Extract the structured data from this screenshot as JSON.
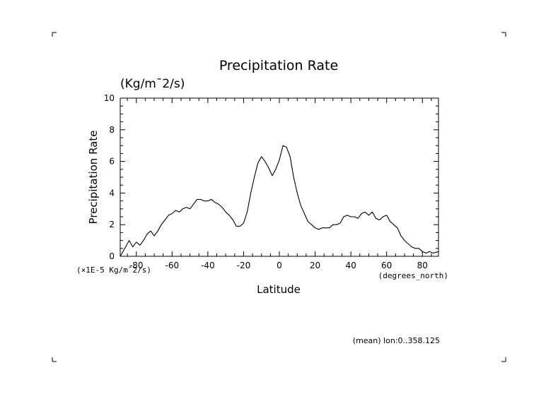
{
  "chart_data": {
    "type": "line",
    "title": "Precipitation Rate",
    "units": "(Kg/m¯2/s)",
    "ylabel": "Precipitation Rate",
    "xlabel": "Latitude",
    "x_units": "(degrees_north)",
    "y_scale_note": "(×1E-5 Kg/m¯2/s)",
    "footnote": "(mean) lon:0..358.125",
    "xlim": [
      -89,
      89
    ],
    "ylim": [
      0,
      10
    ],
    "x_ticks": [
      -80,
      -60,
      -40,
      -20,
      0,
      20,
      40,
      60,
      80
    ],
    "y_ticks": [
      0,
      2,
      4,
      6,
      8,
      10
    ],
    "series": [
      {
        "name": "Precipitation Rate",
        "x": [
          -89,
          -86,
          -84,
          -82,
          -80,
          -78,
          -76,
          -74,
          -72,
          -70,
          -68,
          -66,
          -64,
          -62,
          -60,
          -58,
          -56,
          -54,
          -52,
          -50,
          -48,
          -46,
          -44,
          -42,
          -40,
          -38,
          -36,
          -34,
          -32,
          -30,
          -28,
          -26,
          -24,
          -22,
          -20,
          -18,
          -16,
          -14,
          -12,
          -10,
          -8,
          -6,
          -4,
          -2,
          0,
          2,
          4,
          6,
          8,
          10,
          12,
          14,
          16,
          18,
          20,
          22,
          24,
          26,
          28,
          30,
          32,
          34,
          36,
          38,
          40,
          42,
          44,
          46,
          48,
          50,
          52,
          54,
          56,
          58,
          60,
          62,
          64,
          66,
          68,
          70,
          72,
          74,
          76,
          78,
          80,
          82,
          84,
          86,
          89
        ],
        "values": [
          0.0,
          0.6,
          1.0,
          0.6,
          0.9,
          0.7,
          1.0,
          1.4,
          1.6,
          1.3,
          1.6,
          2.0,
          2.3,
          2.6,
          2.7,
          2.9,
          2.8,
          3.0,
          3.1,
          3.0,
          3.3,
          3.6,
          3.6,
          3.5,
          3.5,
          3.6,
          3.4,
          3.3,
          3.1,
          2.8,
          2.6,
          2.3,
          1.9,
          1.9,
          2.1,
          2.8,
          4.0,
          5.0,
          5.9,
          6.3,
          6.0,
          5.6,
          5.1,
          5.5,
          6.1,
          7.0,
          6.9,
          6.3,
          5.0,
          4.0,
          3.2,
          2.7,
          2.2,
          2.0,
          1.8,
          1.7,
          1.8,
          1.8,
          1.8,
          2.0,
          2.0,
          2.1,
          2.5,
          2.6,
          2.5,
          2.5,
          2.4,
          2.7,
          2.8,
          2.6,
          2.8,
          2.4,
          2.3,
          2.5,
          2.6,
          2.2,
          2.0,
          1.8,
          1.3,
          1.0,
          0.8,
          0.6,
          0.5,
          0.5,
          0.3,
          0.2,
          0.3,
          0.2,
          0.3
        ]
      }
    ]
  }
}
